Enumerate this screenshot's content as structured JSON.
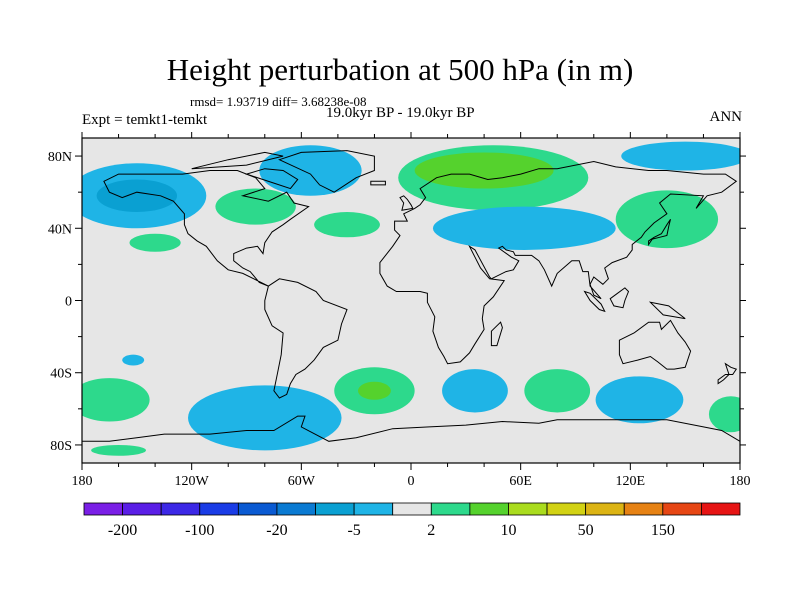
{
  "title": "Height perturbation at 500 hPa (in m)",
  "stats": "rmsd= 1.93719 diff= 3.68238e-08",
  "experiment": "Expt = temkt1-temkt",
  "period": "19.0kyr BP - 19.0kyr BP",
  "season": "ANN",
  "map": {
    "projection": "cylindrical equidistant",
    "lon_range": [
      -180,
      180
    ],
    "lat_range": [
      -90,
      90
    ],
    "x_ticks": [
      {
        "lon": -180,
        "label": "180"
      },
      {
        "lon": -120,
        "label": "120W"
      },
      {
        "lon": -60,
        "label": "60W"
      },
      {
        "lon": 0,
        "label": "0"
      },
      {
        "lon": 60,
        "label": "60E"
      },
      {
        "lon": 120,
        "label": "120E"
      },
      {
        "lon": 180,
        "label": "180"
      }
    ],
    "y_ticks": [
      {
        "lat": 80,
        "label": "80N"
      },
      {
        "lat": 40,
        "label": "40N"
      },
      {
        "lat": 0,
        "label": "0"
      },
      {
        "lat": -40,
        "label": "40S"
      },
      {
        "lat": -80,
        "label": "80S"
      }
    ],
    "ocean_color": "#e6e6e6",
    "coast_color": "#000000"
  },
  "anomalies": [
    {
      "name": "north-pacific-low",
      "lon": -150,
      "lat": 58,
      "rlon": 38,
      "rlat": 18,
      "color": "#1fb4e6"
    },
    {
      "name": "north-pacific-core",
      "lon": -150,
      "lat": 58,
      "rlon": 22,
      "rlat": 9,
      "color": "#0aa0d2"
    },
    {
      "name": "north-america-ridge",
      "lon": -85,
      "lat": 52,
      "rlon": 22,
      "rlat": 10,
      "color": "#2dd98c"
    },
    {
      "name": "greenland-low",
      "lon": -55,
      "lat": 72,
      "rlon": 28,
      "rlat": 14,
      "color": "#1fb4e6"
    },
    {
      "name": "atlantic-ridge",
      "lon": -35,
      "lat": 42,
      "rlon": 18,
      "rlat": 7,
      "color": "#2dd98c"
    },
    {
      "name": "east-pacific-ridge",
      "lon": -140,
      "lat": 32,
      "rlon": 14,
      "rlat": 5,
      "color": "#2dd98c"
    },
    {
      "name": "eurasia-ridge",
      "lon": 45,
      "lat": 68,
      "rlon": 52,
      "rlat": 18,
      "color": "#2dd98c"
    },
    {
      "name": "eurasia-ridge-core",
      "lon": 40,
      "lat": 72,
      "rlon": 38,
      "rlat": 10,
      "color": "#55d22d"
    },
    {
      "name": "central-asia-low",
      "lon": 62,
      "lat": 40,
      "rlon": 50,
      "rlat": 12,
      "color": "#1fb4e6"
    },
    {
      "name": "east-asia-ridge",
      "lon": 140,
      "lat": 45,
      "rlon": 28,
      "rlat": 16,
      "color": "#2dd98c"
    },
    {
      "name": "arctic-pacific-low",
      "lon": 150,
      "lat": 80,
      "rlon": 35,
      "rlat": 8,
      "color": "#1fb4e6"
    },
    {
      "name": "south-pacific-ridge",
      "lon": -165,
      "lat": -55,
      "rlon": 22,
      "rlat": 12,
      "color": "#2dd98c"
    },
    {
      "name": "south-pacific-small-low",
      "lon": -152,
      "lat": -33,
      "rlon": 6,
      "rlat": 3,
      "color": "#1fb4e6"
    },
    {
      "name": "drake-low",
      "lon": -80,
      "lat": -65,
      "rlon": 42,
      "rlat": 18,
      "color": "#1fb4e6"
    },
    {
      "name": "south-atlantic-ridge",
      "lon": -20,
      "lat": -50,
      "rlon": 22,
      "rlat": 13,
      "color": "#2dd98c"
    },
    {
      "name": "south-atlantic-core",
      "lon": -20,
      "lat": -50,
      "rlon": 9,
      "rlat": 5,
      "color": "#55d22d"
    },
    {
      "name": "south-africa-low",
      "lon": 35,
      "lat": -50,
      "rlon": 18,
      "rlat": 12,
      "color": "#1fb4e6"
    },
    {
      "name": "indian-ocean-ridge",
      "lon": 80,
      "lat": -50,
      "rlon": 18,
      "rlat": 12,
      "color": "#2dd98c"
    },
    {
      "name": "australia-low",
      "lon": 125,
      "lat": -55,
      "rlon": 24,
      "rlat": 13,
      "color": "#1fb4e6"
    },
    {
      "name": "tasman-ridge",
      "lon": 175,
      "lat": -63,
      "rlon": 12,
      "rlat": 10,
      "color": "#2dd98c"
    },
    {
      "name": "antarctic-ridge",
      "lon": -160,
      "lat": -83,
      "rlon": 15,
      "rlat": 3,
      "color": "#2dd98c"
    }
  ],
  "colorbar": {
    "colors": [
      "#7a1fe6",
      "#5a1ee6",
      "#3c28e6",
      "#1a3ce6",
      "#0a5ad2",
      "#0a7ad2",
      "#0aa0d2",
      "#1fb4e6",
      "#e6e6e6",
      "#2dd98c",
      "#55d22d",
      "#aadc1e",
      "#d2d214",
      "#dcb414",
      "#e68214",
      "#e64614",
      "#e61414"
    ],
    "labels": [
      "-200",
      "-100",
      "-20",
      "-5",
      "2",
      "10",
      "50",
      "150"
    ]
  }
}
